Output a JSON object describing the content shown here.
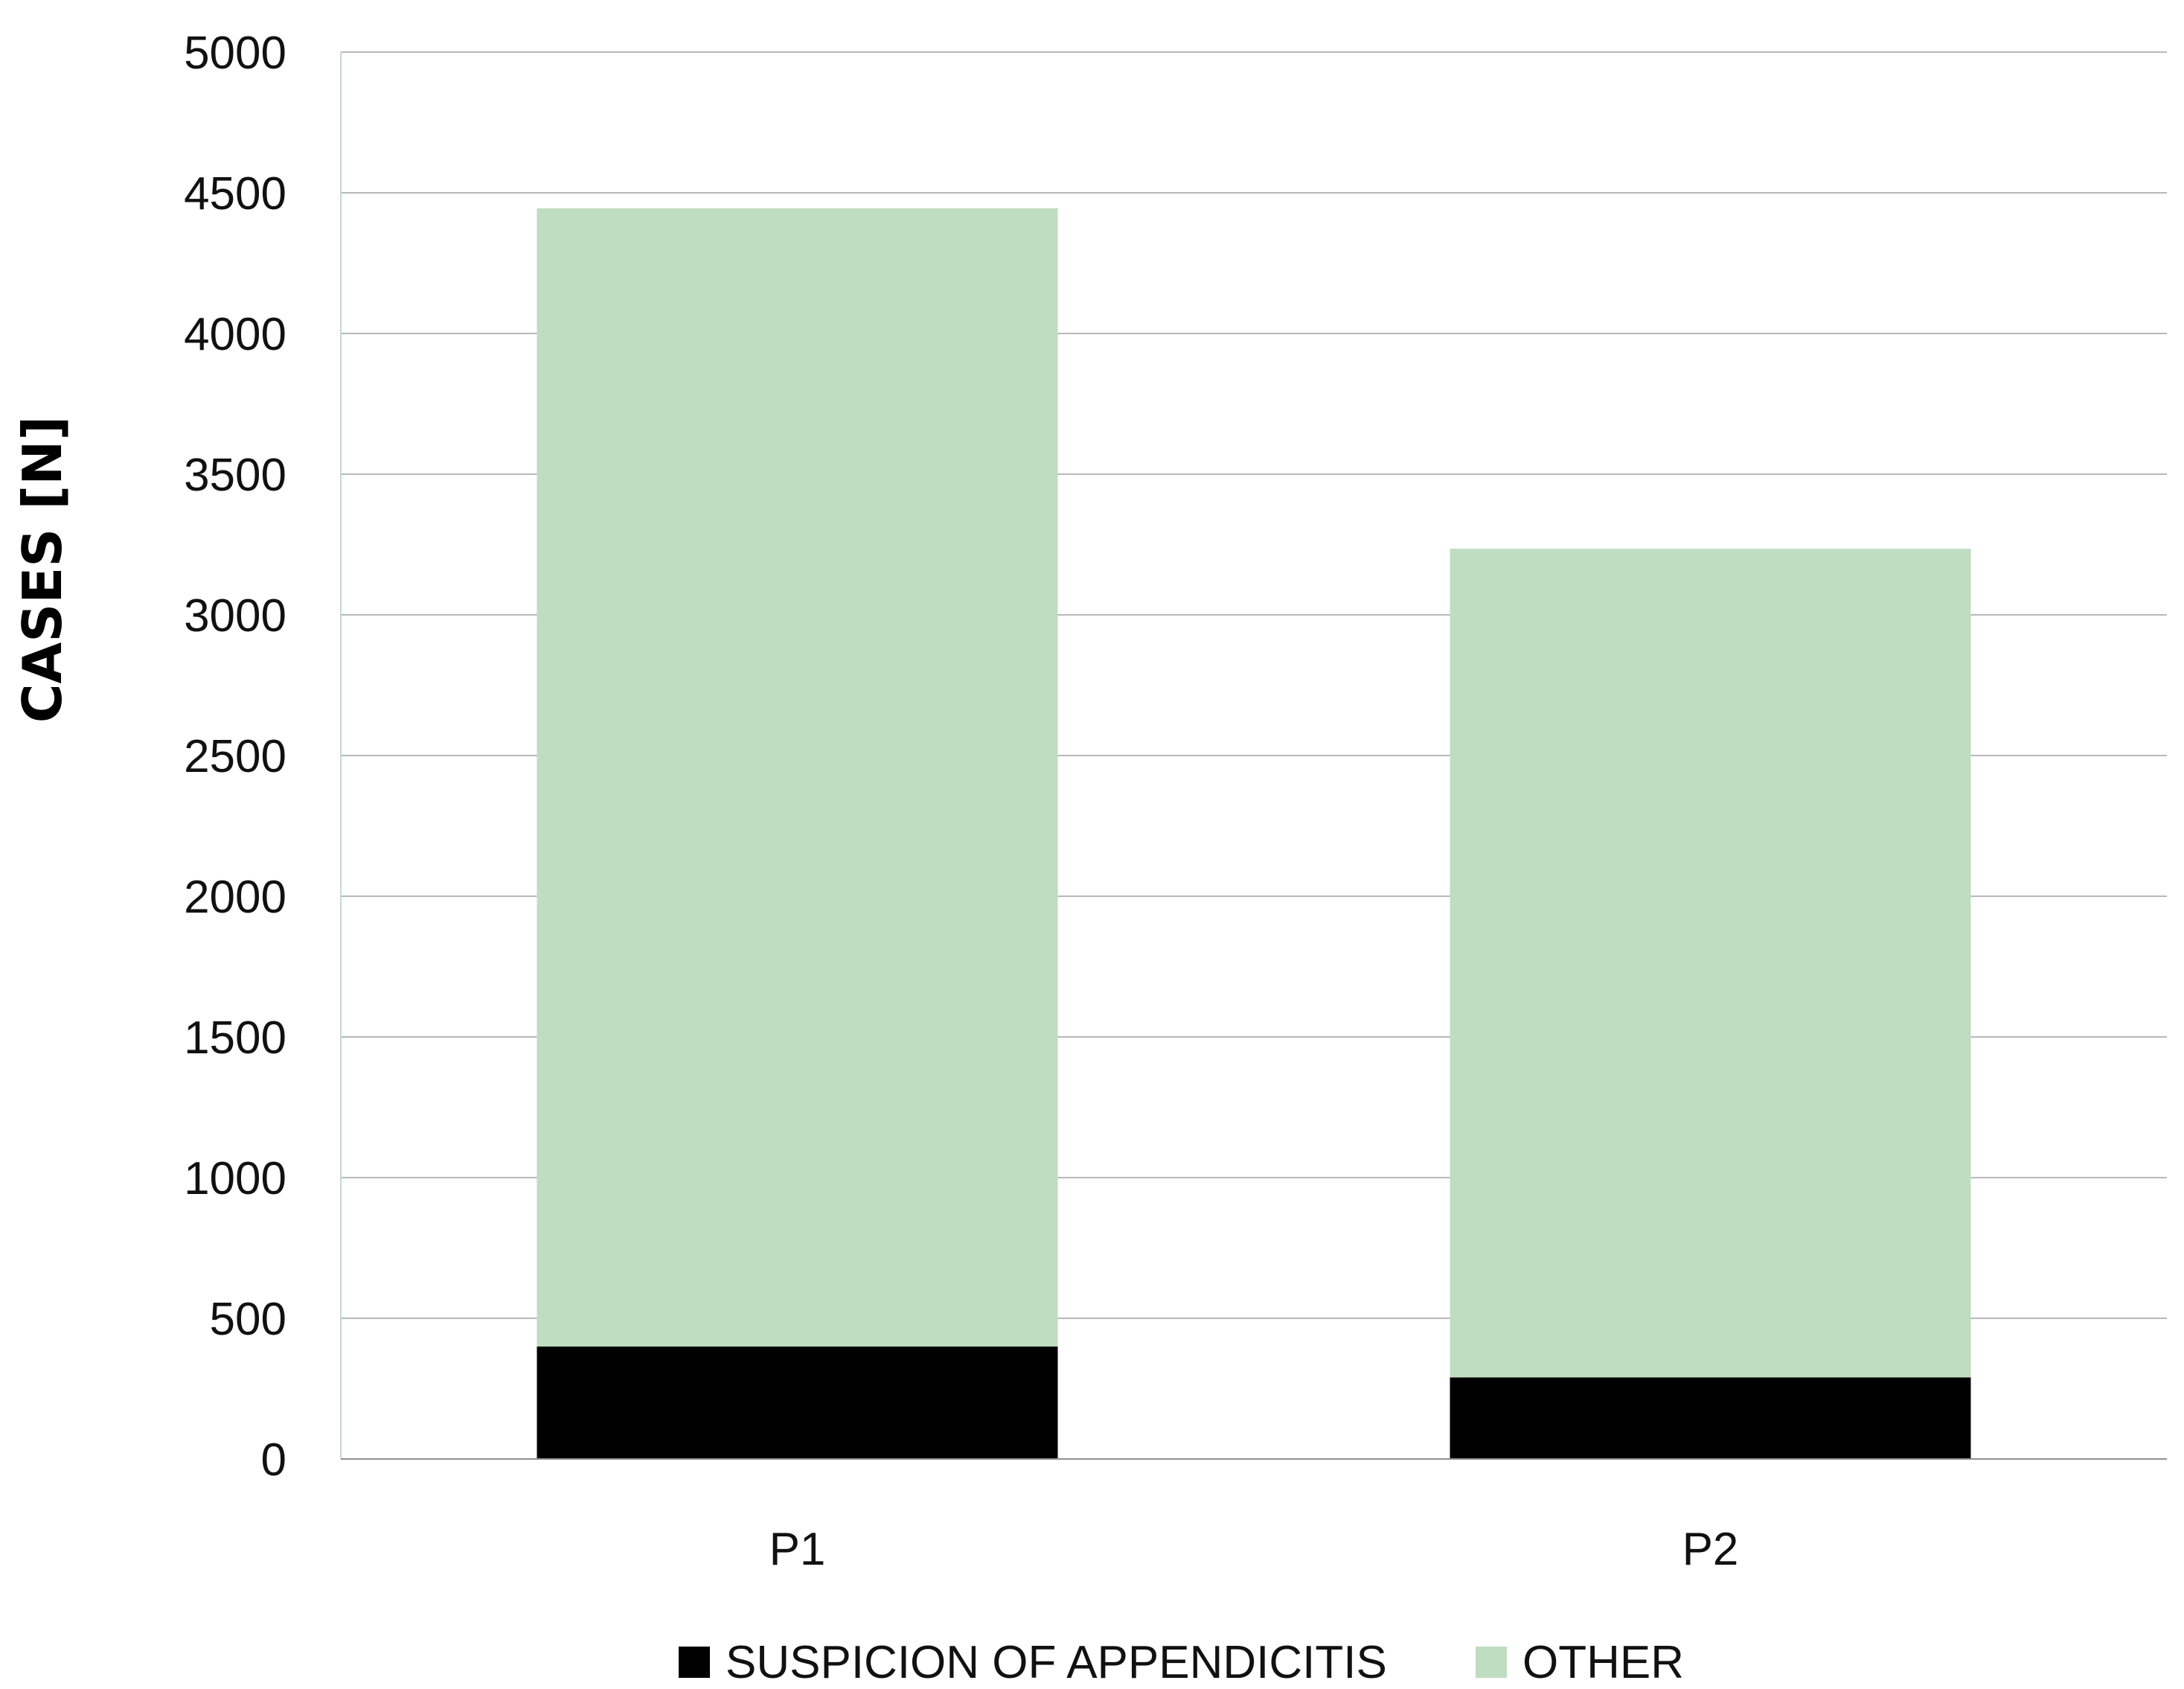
{
  "chart_data": {
    "type": "bar",
    "stacked": true,
    "title": "",
    "xlabel": "",
    "ylabel": "CASES [N]",
    "ylim": [
      0,
      5000
    ],
    "yticks": [
      0,
      500,
      1000,
      1500,
      2000,
      2500,
      3000,
      3500,
      4000,
      4500,
      5000
    ],
    "categories": [
      "P1",
      "P2"
    ],
    "grid": true,
    "legend": "bottom",
    "series": [
      {
        "name": "SUSPICION OF APPENDICITIS",
        "values": [
          400,
          290
        ],
        "color": "#000000"
      },
      {
        "name": "OTHER",
        "values": [
          4045,
          2945
        ],
        "color": "#bfddc0"
      }
    ]
  }
}
